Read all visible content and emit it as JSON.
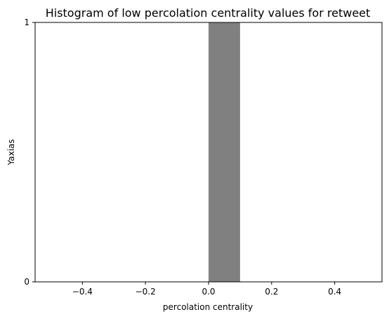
{
  "chart_data": {
    "type": "bar",
    "title": "Histogram of low percolation centrality values for retweet",
    "xlabel": "percolation centrality",
    "ylabel": "Yaxias",
    "xlim": [
      -0.55,
      0.55
    ],
    "ylim": [
      0,
      1
    ],
    "x_ticks": [
      -0.4,
      -0.2,
      0.0,
      0.2,
      0.4
    ],
    "x_tick_labels": [
      "−0.4",
      "−0.2",
      "0.0",
      "0.2",
      "0.4"
    ],
    "y_ticks": [
      0,
      1
    ],
    "y_tick_labels": [
      "0",
      "1"
    ],
    "bars": [
      {
        "x0": 0.0,
        "x1": 0.1,
        "value": 1
      }
    ],
    "bar_color": "#808080",
    "grid": false,
    "legend": "none"
  }
}
